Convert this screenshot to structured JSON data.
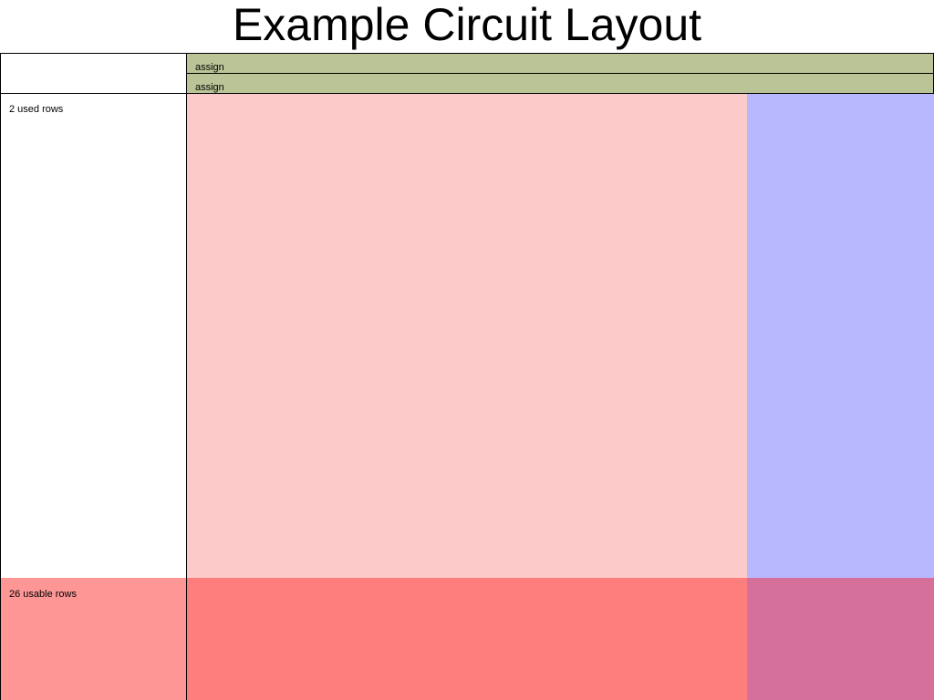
{
  "title": "Example Circuit Layout",
  "assign_rows": [
    {
      "label": "assign"
    },
    {
      "label": "assign"
    }
  ],
  "used_rows_label": "2 used rows",
  "usable_rows_label": "26 usable rows",
  "colors": {
    "assign": "#bbc497",
    "main_area": "#fdcaca",
    "right_area": "#b8b8fe",
    "usable_left": "#fe9696",
    "usable_main": "#fe7d7d",
    "usable_right": "#d47099"
  }
}
